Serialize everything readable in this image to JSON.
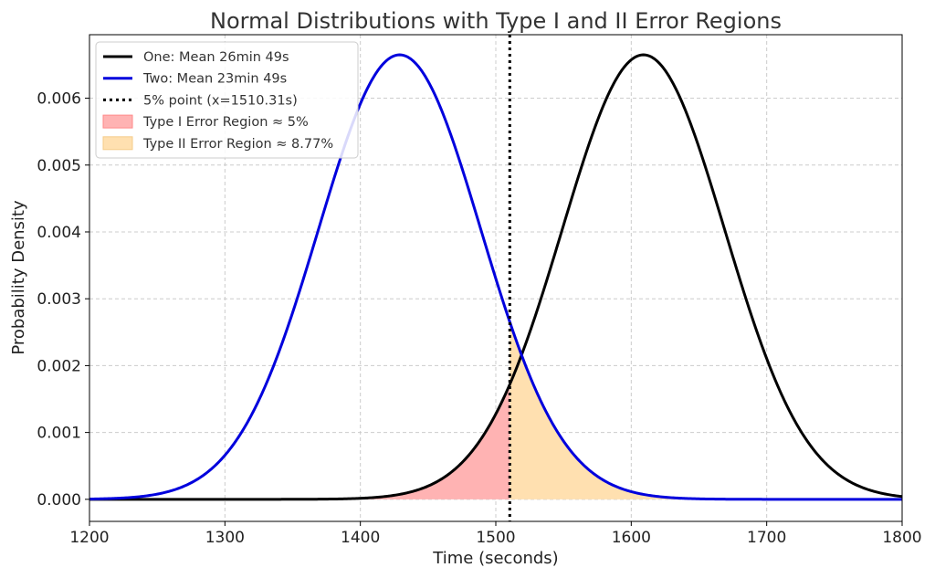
{
  "chart_data": {
    "type": "line",
    "title": "Normal Distributions with Type I and II Error Regions",
    "xlabel": "Time (seconds)",
    "ylabel": "Probability Density",
    "xlim": [
      1200,
      1800
    ],
    "ylim": [
      -0.00033,
      0.00695
    ],
    "x_ticks": [
      1200,
      1300,
      1400,
      1500,
      1600,
      1700,
      1800
    ],
    "x_tick_labels": [
      "1200",
      "1300",
      "1400",
      "1500",
      "1600",
      "1700",
      "1800"
    ],
    "y_ticks": [
      0,
      0.001,
      0.002,
      0.003,
      0.004,
      0.005,
      0.006
    ],
    "y_tick_labels": [
      "0.000",
      "0.001",
      "0.002",
      "0.003",
      "0.004",
      "0.005",
      "0.006"
    ],
    "grid": true,
    "legend_position": "top-left",
    "series": [
      {
        "name": "One: Mean 26min 49s",
        "distribution": "normal",
        "mean": 1609,
        "std": 60,
        "color": "#000000"
      },
      {
        "name": "Two: Mean 23min 49s",
        "distribution": "normal",
        "mean": 1429,
        "std": 60,
        "color": "#0000dd"
      }
    ],
    "threshold": {
      "name": "5% point (x=1510.31s)",
      "x": 1510.31,
      "color": "#000000",
      "style": "dotted"
    },
    "regions": [
      {
        "name": "Type I Error Region ≈ 5%",
        "under_series": 0,
        "x_from": 1200,
        "x_to": 1510.31,
        "color": "#ffb3b3"
      },
      {
        "name": "Type II Error Region ≈ 8.77%",
        "under_series": 1,
        "x_from": 1510.31,
        "x_to": 1800,
        "color": "#ffe0b0"
      }
    ]
  }
}
